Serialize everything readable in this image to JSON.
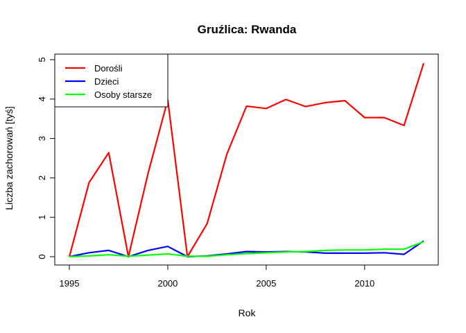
{
  "chart_data": {
    "type": "line",
    "title": "Gruźlica: Rwanda",
    "xlabel": "Rok",
    "ylabel": "Liczba zachorowań [tyś]",
    "xlim": [
      1995,
      2013
    ],
    "ylim": [
      0,
      5
    ],
    "xticks": [
      1995,
      2000,
      2005,
      2010
    ],
    "yticks": [
      0,
      1,
      2,
      3,
      4,
      5
    ],
    "x": [
      1995,
      1996,
      1997,
      1998,
      1999,
      2000,
      2001,
      2002,
      2003,
      2004,
      2005,
      2006,
      2007,
      2008,
      2009,
      2010,
      2011,
      2012,
      2013
    ],
    "series": [
      {
        "name": "Dorośli",
        "color": "#ff0000",
        "values": [
          0,
          1.88,
          2.64,
          0,
          2.12,
          3.98,
          0,
          0.84,
          2.6,
          3.82,
          3.76,
          3.99,
          3.81,
          3.91,
          3.96,
          3.53,
          3.53,
          3.33,
          4.91
        ]
      },
      {
        "name": "Dzieci",
        "color": "#0000ff",
        "values": [
          0,
          0.1,
          0.16,
          0,
          0.16,
          0.26,
          0,
          0.02,
          0.07,
          0.13,
          0.12,
          0.13,
          0.12,
          0.09,
          0.09,
          0.09,
          0.1,
          0.06,
          0.4
        ]
      },
      {
        "name": "Osoby starsze",
        "color": "#00ff00",
        "values": [
          0,
          0.02,
          0.05,
          0.01,
          0.04,
          0.07,
          0.01,
          0.01,
          0.05,
          0.08,
          0.1,
          0.12,
          0.13,
          0.16,
          0.17,
          0.17,
          0.19,
          0.19,
          0.38
        ]
      }
    ],
    "legend": "top-left",
    "grid": false
  }
}
